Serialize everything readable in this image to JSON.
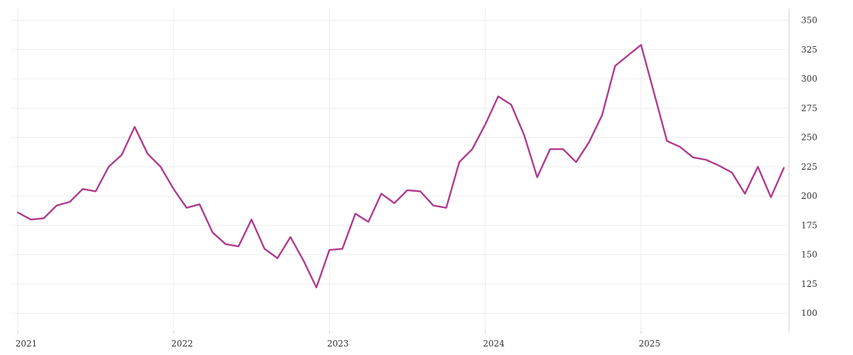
{
  "chart_data": {
    "type": "line",
    "title": "",
    "xlabel": "",
    "ylabel": "",
    "x_tick_labels": [
      "2021",
      "2022",
      "2023",
      "2024",
      "2025"
    ],
    "y_ticks": [
      100,
      125,
      150,
      175,
      200,
      225,
      250,
      275,
      300,
      325,
      350
    ],
    "ylim": [
      85,
      360
    ],
    "xlim": [
      "2021-01",
      "2025-12"
    ],
    "grid": true,
    "y_axis_side": "right",
    "series": [
      {
        "color": "#b03a8c",
        "x": [
          "2021-01",
          "2021-02",
          "2021-03",
          "2021-04",
          "2021-05",
          "2021-06",
          "2021-07",
          "2021-08",
          "2021-09",
          "2021-10",
          "2021-11",
          "2021-12",
          "2022-01",
          "2022-02",
          "2022-03",
          "2022-04",
          "2022-05",
          "2022-06",
          "2022-07",
          "2022-08",
          "2022-09",
          "2022-10",
          "2022-11",
          "2022-12",
          "2023-01",
          "2023-02",
          "2023-03",
          "2023-04",
          "2023-05",
          "2023-06",
          "2023-07",
          "2023-08",
          "2023-09",
          "2023-10",
          "2023-11",
          "2023-12",
          "2024-01",
          "2024-02",
          "2024-03",
          "2024-04",
          "2024-05",
          "2024-06",
          "2024-07",
          "2024-08",
          "2024-09",
          "2024-10",
          "2024-11",
          "2024-12",
          "2025-01",
          "2025-02",
          "2025-03",
          "2025-04",
          "2025-05",
          "2025-06",
          "2025-07",
          "2025-08",
          "2025-09",
          "2025-10",
          "2025-11",
          "2025-12"
        ],
        "values": [
          186,
          180,
          181,
          192,
          195,
          206,
          204,
          225,
          235,
          259,
          236,
          225,
          206,
          190,
          193,
          169,
          159,
          157,
          180,
          155,
          147,
          165,
          145,
          122,
          154,
          155,
          185,
          178,
          202,
          194,
          205,
          204,
          192,
          190,
          229,
          240,
          261,
          285,
          278,
          252,
          216,
          240,
          240,
          229,
          246,
          269,
          311,
          320,
          329,
          288,
          247,
          242,
          233,
          231,
          226,
          220,
          202,
          225,
          199,
          224
        ]
      }
    ]
  }
}
